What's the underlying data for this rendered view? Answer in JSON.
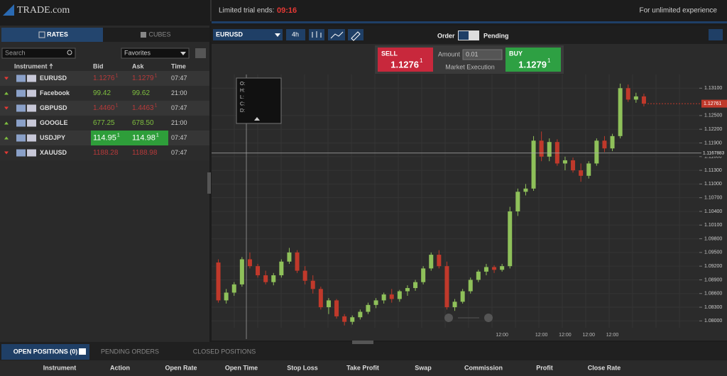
{
  "header": {
    "logo": "TRADE.com",
    "trial_label": "Limited trial ends:",
    "trial_time": "09:16",
    "upgrade": "For unlimited experience"
  },
  "rates_panel": {
    "tabs": [
      "RATES",
      "CUBES"
    ],
    "search_placeholder": "Search",
    "filter": "Favorites",
    "columns": [
      "Instrument",
      "Bid",
      "Ask",
      "Time"
    ],
    "rows": [
      {
        "instrument": "EURUSD",
        "direction": "down",
        "bid": "1.1276",
        "bid_sup": "1",
        "ask": "1.1279",
        "ask_sup": "1",
        "time": "07:47"
      },
      {
        "instrument": "Facebook",
        "direction": "up",
        "bid": "99.42",
        "ask": "99.62",
        "time": "21:00"
      },
      {
        "instrument": "GBPUSD",
        "direction": "down",
        "bid": "1.4460",
        "bid_sup": "1",
        "ask": "1.4463",
        "ask_sup": "1",
        "time": "07:47"
      },
      {
        "instrument": "GOOGLE",
        "direction": "up",
        "bid": "677.25",
        "ask": "678.50",
        "time": "21:00"
      },
      {
        "instrument": "USDJPY",
        "direction": "up",
        "bid": "114.95",
        "bid_sup": "1",
        "ask": "114.98",
        "ask_sup": "1",
        "time": "07:47"
      },
      {
        "instrument": "XAUUSD",
        "direction": "down",
        "bid": "1188.28",
        "ask": "1188.98",
        "time": "07:47"
      }
    ]
  },
  "trade_panel": {
    "symbol": "EURUSD",
    "timeframe": "4h",
    "order_label": "Order",
    "pending_label": "Pending",
    "sell_label": "SELL",
    "sell_price": "1.1276",
    "sell_sup": "1",
    "amount_label": "Amount",
    "amount": "0.01",
    "execution": "Market Execution",
    "buy_label": "BUY",
    "buy_price": "1.1279",
    "buy_sup": "1",
    "ohlc_labels": [
      "O:",
      "H:",
      "L:",
      "C:",
      "D:"
    ]
  },
  "chart_data": {
    "type": "candlestick",
    "up_color": "#8fc15a",
    "down_color": "#c0392b",
    "categories": [
      null,
      null,
      null,
      null,
      null,
      null,
      null,
      null,
      null,
      null,
      null,
      null,
      null,
      null,
      null,
      null,
      null,
      null,
      null,
      null,
      null,
      null,
      null,
      null,
      null,
      null,
      null,
      null,
      null,
      null,
      null,
      null,
      null,
      null,
      null,
      null,
      "12:00",
      null,
      null,
      null,
      null,
      "12:00",
      null,
      null,
      "12:00",
      null,
      null,
      "12:00",
      null,
      null,
      "12:00",
      null,
      null,
      null,
      null
    ],
    "open": [
      1.0928,
      1.0845,
      1.0862,
      1.088,
      1.0935,
      1.092,
      1.09,
      1.0885,
      1.09,
      1.093,
      1.095,
      1.091,
      1.0888,
      1.087,
      1.083,
      1.0845,
      1.081,
      1.0798,
      1.0808,
      1.082,
      1.0835,
      1.0845,
      1.0858,
      1.0848,
      1.0865,
      1.0872,
      1.0885,
      1.0915,
      1.0945,
      1.092,
      1.083,
      1.0842,
      1.0865,
      1.089,
      1.0908,
      1.0918,
      1.0912,
      1.092,
      1.104,
      1.1083,
      1.109,
      1.1195,
      1.116,
      1.1192,
      1.1145,
      1.1152,
      1.113,
      1.1118,
      1.1145,
      1.1195,
      1.1178,
      1.1205,
      1.131,
      1.1285,
      1.1292
    ],
    "high": [
      1.0935,
      1.087,
      1.0885,
      1.094,
      1.095,
      1.0925,
      1.091,
      1.0905,
      1.0935,
      1.096,
      1.0955,
      1.092,
      1.09,
      1.0875,
      1.085,
      1.0848,
      1.0815,
      1.0812,
      1.0825,
      1.084,
      1.085,
      1.0862,
      1.087,
      1.0868,
      1.0878,
      1.089,
      1.092,
      1.095,
      1.0955,
      1.093,
      1.0848,
      1.087,
      1.0895,
      1.0912,
      1.0925,
      1.0922,
      1.0925,
      1.105,
      1.109,
      1.11,
      1.1205,
      1.1215,
      1.12,
      1.1198,
      1.116,
      1.1158,
      1.1145,
      1.115,
      1.12,
      1.1205,
      1.121,
      1.132,
      1.1318,
      1.13,
      1.1298
    ],
    "low": [
      1.084,
      1.0838,
      1.0855,
      1.0875,
      1.0915,
      1.0895,
      1.088,
      1.0878,
      1.0895,
      1.0925,
      1.0905,
      1.088,
      1.086,
      1.0825,
      1.0815,
      1.0805,
      1.079,
      1.0792,
      1.0803,
      1.0815,
      1.0828,
      1.0838,
      1.084,
      1.0842,
      1.0855,
      1.0866,
      1.088,
      1.091,
      1.0915,
      1.0825,
      1.0822,
      1.0838,
      1.086,
      1.0885,
      1.09,
      1.0905,
      1.0908,
      1.0915,
      1.103,
      1.1075,
      1.1085,
      1.115,
      1.115,
      1.114,
      1.113,
      1.1125,
      1.1105,
      1.1112,
      1.114,
      1.117,
      1.1172,
      1.12,
      1.128,
      1.1278,
      1.127
    ],
    "close": [
      1.0845,
      1.0862,
      1.088,
      1.0935,
      1.092,
      1.09,
      1.0885,
      1.09,
      1.093,
      1.095,
      1.091,
      1.0888,
      1.087,
      1.083,
      1.0845,
      1.081,
      1.0798,
      1.0808,
      1.082,
      1.0835,
      1.0845,
      1.0858,
      1.0848,
      1.0865,
      1.0872,
      1.0885,
      1.0915,
      1.0945,
      1.092,
      1.083,
      1.0842,
      1.0865,
      1.089,
      1.0908,
      1.0918,
      1.0912,
      1.092,
      1.104,
      1.1083,
      1.109,
      1.1195,
      1.116,
      1.1192,
      1.1145,
      1.1152,
      1.113,
      1.1118,
      1.1145,
      1.1195,
      1.1178,
      1.1205,
      1.131,
      1.1285,
      1.1292,
      1.1276
    ],
    "ylim": [
      1.0785,
      1.134
    ],
    "yticks": [
      {
        "value": 1.131,
        "label": "1.13100"
      },
      {
        "value": 1.125,
        "label": "1.12500"
      },
      {
        "value": 1.122,
        "label": "1.12200"
      },
      {
        "value": 1.119,
        "label": "1.11900"
      },
      {
        "value": 1.116,
        "label": "1.11600"
      },
      {
        "value": 1.113,
        "label": "1.11300"
      },
      {
        "value": 1.11,
        "label": "1.11000"
      },
      {
        "value": 1.107,
        "label": "1.10700"
      },
      {
        "value": 1.104,
        "label": "1.10400"
      },
      {
        "value": 1.101,
        "label": "1.10100"
      },
      {
        "value": 1.098,
        "label": "1.09800"
      },
      {
        "value": 1.095,
        "label": "1.09500"
      },
      {
        "value": 1.092,
        "label": "1.09200"
      },
      {
        "value": 1.089,
        "label": "1.08900"
      },
      {
        "value": 1.086,
        "label": "1.08600"
      },
      {
        "value": 1.083,
        "label": "1.08300"
      },
      {
        "value": 1.08,
        "label": "1.08000"
      }
    ],
    "price_marker": {
      "value": 1.12761,
      "label": "1.12761"
    },
    "crosshair": {
      "value": 1.1167883,
      "label": "1.1167883"
    }
  },
  "positions": {
    "tabs": [
      "OPEN POSITIONS (0)",
      "PENDING ORDERS",
      "CLOSED POSITIONS"
    ],
    "columns": [
      "Instrument",
      "Action",
      "Open Rate",
      "Open Time",
      "Stop Loss",
      "Take Profit",
      "Swap",
      "Commission",
      "Profit",
      "Close Rate"
    ]
  }
}
